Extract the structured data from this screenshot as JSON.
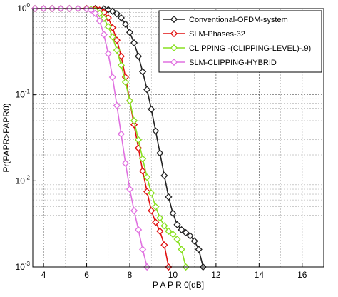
{
  "chart_data": {
    "type": "line",
    "title": "",
    "xlabel": "P A P R 0[dB]",
    "ylabel": "Pr(PAPR>PAPR0)",
    "xlim": [
      3.5,
      17
    ],
    "ylim": [
      0.001,
      1
    ],
    "x_scale": "linear",
    "y_scale": "log",
    "x_ticks": [
      4,
      6,
      8,
      10,
      12,
      14,
      16
    ],
    "x_tick_labels": [
      "4",
      "6",
      "8",
      "10",
      "12",
      "14",
      "16"
    ],
    "y_ticks": [
      1,
      0.1,
      0.01,
      0.001
    ],
    "y_tick_labels": [
      {
        "base": "10",
        "exp": "0"
      },
      {
        "base": "10",
        "exp": "-1"
      },
      {
        "base": "10",
        "exp": "-2"
      },
      {
        "base": "10",
        "exp": "-3"
      }
    ],
    "grid": true,
    "legend_position": "top-right",
    "series": [
      {
        "name": "Conventional-OFDM-system",
        "color": "#222222",
        "marker": "diamond",
        "x": [
          3.6,
          4.0,
          4.4,
          4.8,
          5.2,
          5.6,
          6.0,
          6.4,
          6.8,
          7.0,
          7.2,
          7.4,
          7.6,
          7.8,
          8.0,
          8.2,
          8.4,
          8.6,
          8.8,
          9.0,
          9.2,
          9.4,
          9.6,
          9.8,
          10.0,
          10.2,
          10.4,
          10.6,
          10.8,
          11.0,
          11.2,
          11.4
        ],
        "y": [
          1,
          1,
          1,
          1,
          1,
          1,
          1,
          1,
          0.99,
          0.97,
          0.93,
          0.87,
          0.78,
          0.66,
          0.53,
          0.4,
          0.28,
          0.185,
          0.115,
          0.068,
          0.038,
          0.021,
          0.0115,
          0.0065,
          0.0042,
          0.0031,
          0.0027,
          0.0025,
          0.0023,
          0.002,
          0.0016,
          0.001
        ]
      },
      {
        "name": "SLM-Phases-32",
        "color": "#e01010",
        "marker": "diamond",
        "x": [
          3.6,
          4.0,
          4.4,
          4.8,
          5.2,
          5.6,
          6.0,
          6.4,
          6.6,
          6.8,
          7.0,
          7.2,
          7.4,
          7.6,
          7.8,
          8.0,
          8.2,
          8.4,
          8.6,
          8.8,
          9.0,
          9.2,
          9.4,
          9.6,
          9.8
        ],
        "y": [
          1,
          1,
          1,
          1,
          1,
          1,
          1,
          0.99,
          0.96,
          0.9,
          0.78,
          0.6,
          0.43,
          0.28,
          0.16,
          0.085,
          0.045,
          0.024,
          0.013,
          0.0075,
          0.0045,
          0.0033,
          0.0026,
          0.0018,
          0.001
        ]
      },
      {
        "name": "CLIPPING -(CLIPPING-LEVEL)-.9)",
        "color": "#88e020",
        "marker": "diamond",
        "x": [
          3.6,
          4.0,
          4.4,
          4.8,
          5.2,
          5.6,
          6.0,
          6.2,
          6.4,
          6.6,
          6.8,
          7.0,
          7.2,
          7.4,
          7.6,
          7.8,
          8.0,
          8.2,
          8.4,
          8.6,
          8.8,
          9.0,
          9.2,
          9.4,
          9.6,
          9.8,
          10.0,
          10.2,
          10.4,
          10.6
        ],
        "y": [
          1,
          1,
          1,
          1,
          1,
          1,
          0.99,
          0.98,
          0.95,
          0.88,
          0.77,
          0.62,
          0.47,
          0.33,
          0.22,
          0.14,
          0.085,
          0.05,
          0.03,
          0.018,
          0.011,
          0.0072,
          0.005,
          0.0037,
          0.003,
          0.0026,
          0.0024,
          0.0021,
          0.0016,
          0.001
        ]
      },
      {
        "name": "SLM-CLIPPING-HYBRID",
        "color": "#e070e0",
        "marker": "diamond",
        "x": [
          3.6,
          4.0,
          4.4,
          4.8,
          5.2,
          5.6,
          6.0,
          6.2,
          6.4,
          6.6,
          6.8,
          7.0,
          7.2,
          7.4,
          7.6,
          7.8,
          8.0,
          8.2,
          8.4,
          8.6,
          8.8
        ],
        "y": [
          1,
          1,
          1,
          1,
          1,
          1,
          0.99,
          0.96,
          0.88,
          0.72,
          0.5,
          0.3,
          0.16,
          0.075,
          0.035,
          0.016,
          0.008,
          0.0045,
          0.0027,
          0.0016,
          0.001
        ]
      }
    ]
  }
}
